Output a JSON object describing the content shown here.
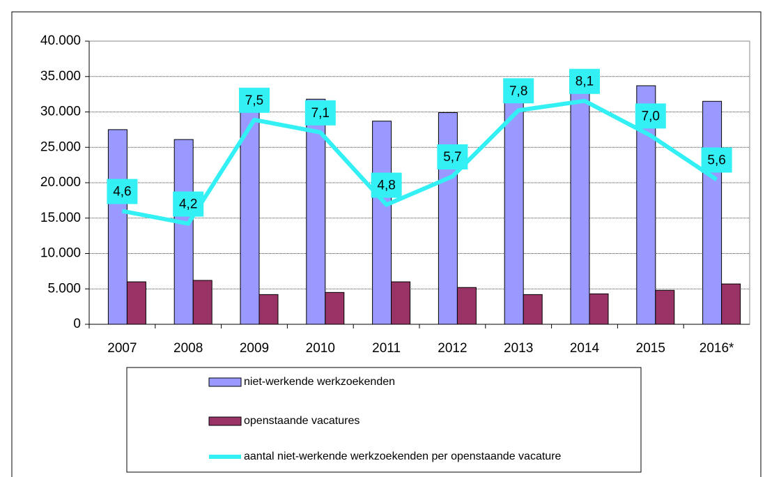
{
  "chart_data": {
    "type": "bar",
    "categories": [
      "2007",
      "2008",
      "2009",
      "2010",
      "2011",
      "2012",
      "2013",
      "2014",
      "2015",
      "2016*"
    ],
    "series": [
      {
        "name": "niet-werkende werkzoekenden",
        "color": "#9999ff",
        "values": [
          27500,
          26100,
          31500,
          31800,
          28700,
          29900,
          32700,
          34600,
          33700,
          31500
        ]
      },
      {
        "name": "openstaande vacatures",
        "color": "#993366",
        "values": [
          6000,
          6200,
          4200,
          4500,
          6000,
          5200,
          4200,
          4300,
          4800,
          5700
        ]
      },
      {
        "name": "aantal niet-werkende werkzoekenden per openstaande vacature",
        "color": "#33f0f5",
        "type": "line",
        "axis": "y2",
        "values": [
          4.6,
          4.2,
          7.5,
          7.1,
          4.8,
          5.7,
          7.8,
          8.1,
          7.0,
          5.6
        ],
        "value_labels": [
          "4,6",
          "4,2",
          "7,5",
          "7,1",
          "4,8",
          "5,7",
          "7,8",
          "8,1",
          "7,0",
          "5,6"
        ]
      }
    ],
    "ylim": [
      0,
      40000
    ],
    "yticks": [
      0,
      {
        "value": 5000,
        "label": "5.000"
      },
      {
        "value": 10000,
        "label": "10.000"
      },
      {
        "value": 15000,
        "label": "15.000"
      },
      {
        "value": 20000,
        "label": "20.000"
      },
      {
        "value": 25000,
        "label": "25.000"
      },
      {
        "value": 30000,
        "label": "30.000"
      },
      {
        "value": 35000,
        "label": "35.000"
      },
      {
        "value": 40000,
        "label": "40.000"
      }
    ],
    "y2lim": [
      1,
      10
    ],
    "grid": true
  }
}
